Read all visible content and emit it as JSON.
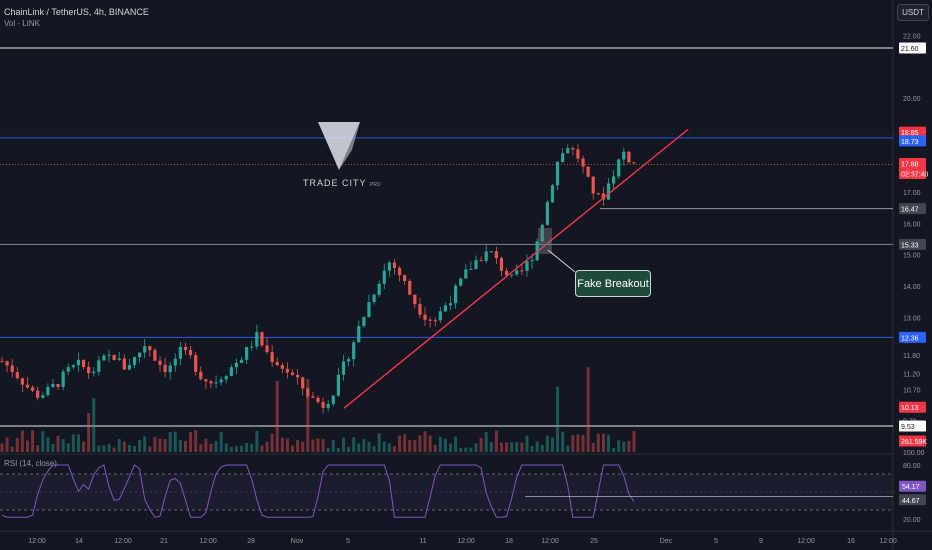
{
  "header": {
    "title": "ChainLink / TetherUS, 4h, BINANCE",
    "volume_label": "Vol · LINK",
    "rsi_label": "RSI (14, close)",
    "currency_button": "USDT"
  },
  "watermark": {
    "text": "TRADE CITY",
    "text_small": "PRO"
  },
  "annotation": {
    "callout": "Fake Breakout"
  },
  "colors": {
    "background": "#131722",
    "up": "#26a69a",
    "down": "#ef5350",
    "trendline": "#f23645",
    "level_white": "#ffffff",
    "level_blue": "#2962ff",
    "rsi_line": "#7e57c2"
  },
  "chart_data": [
    {
      "type": "candlestick",
      "title": "ChainLink / TetherUS, 4h, BINANCE",
      "y_tick_labels": [
        "22.00",
        "20.00",
        "19.00",
        "17.00",
        "16.00",
        "15.00",
        "14.00",
        "13.00",
        "11.80",
        "11.20",
        "10.70",
        "9.70",
        "100.00"
      ],
      "x_tick_labels": [
        "12:00",
        "14",
        "12:00",
        "21",
        "12:00",
        "28",
        "Nov",
        "5",
        "11",
        "12:00",
        "18",
        "12:00",
        "25",
        "Dec",
        "5",
        "9",
        "12:00",
        "16",
        "12:00"
      ],
      "price_labels": [
        {
          "value": "21.60",
          "color": "#ffffff",
          "text_color": "#131722"
        },
        {
          "value": "18.85",
          "color": "#f23645",
          "text_color": "#ffffff"
        },
        {
          "value": "18.73",
          "color": "#2962ff",
          "text_color": "#ffffff"
        },
        {
          "value": "17.88",
          "color": "#f23645",
          "text_color": "#ffffff"
        },
        {
          "value": "02:37:40",
          "color": "#f23645",
          "text_color": "#ffffff"
        },
        {
          "value": "16.47",
          "color": "#434651",
          "text_color": "#ffffff"
        },
        {
          "value": "15.33",
          "color": "#434651",
          "text_color": "#ffffff"
        },
        {
          "value": "12.36",
          "color": "#2962ff",
          "text_color": "#ffffff"
        },
        {
          "value": "10.13",
          "color": "#f23645",
          "text_color": "#ffffff"
        },
        {
          "value": "9.53",
          "color": "#ffffff",
          "text_color": "#131722"
        },
        {
          "value": "261.59K",
          "color": "#f23645",
          "text_color": "#ffffff"
        }
      ],
      "horizontal_levels": [
        21.6,
        18.73,
        15.33,
        12.36,
        9.53
      ],
      "dashed_levels": [
        17.88
      ],
      "trendline": {
        "from_price": 10.1,
        "to_price": 19.0
      },
      "ylim": [
        9.3,
        22.4
      ],
      "series": [
        {
          "close_path": [
            11.6,
            11.3,
            10.9,
            10.5,
            10.6,
            10.9,
            11.3,
            11.5,
            11.2,
            11.6,
            11.8,
            11.4,
            11.7,
            12.2,
            11.6,
            11.3,
            11.9,
            11.7,
            11.1,
            10.9,
            11.2,
            11.5,
            11.9,
            12.4,
            11.8,
            11.5,
            11.2,
            10.8,
            10.4,
            10.2,
            10.7,
            11.6,
            12.5,
            13.4,
            14.2,
            14.8,
            14.3,
            13.6,
            13.1,
            12.9,
            13.4,
            13.9,
            14.5,
            14.9,
            15.1,
            14.6,
            14.2,
            14.5,
            15.1,
            16.4,
            17.9,
            18.5,
            18.1,
            17.2,
            16.7,
            17.5,
            18.3,
            17.9
          ]
        }
      ]
    },
    {
      "type": "bar",
      "title": "",
      "values_description_only": false,
      "ylabel": "",
      "y_tick_labels": []
    },
    {
      "type": "line",
      "title": "RSI (14, close)",
      "y_tick_labels": [
        "80.00",
        "60.00",
        "20.00"
      ],
      "levels": [
        70,
        30
      ],
      "price_labels": [
        {
          "value": "54.17",
          "color": "#7e57c2",
          "text_color": "#ffffff"
        },
        {
          "value": "44.67",
          "color": "#434651",
          "text_color": "#ffffff"
        }
      ],
      "ylim": [
        10,
        90
      ]
    }
  ]
}
